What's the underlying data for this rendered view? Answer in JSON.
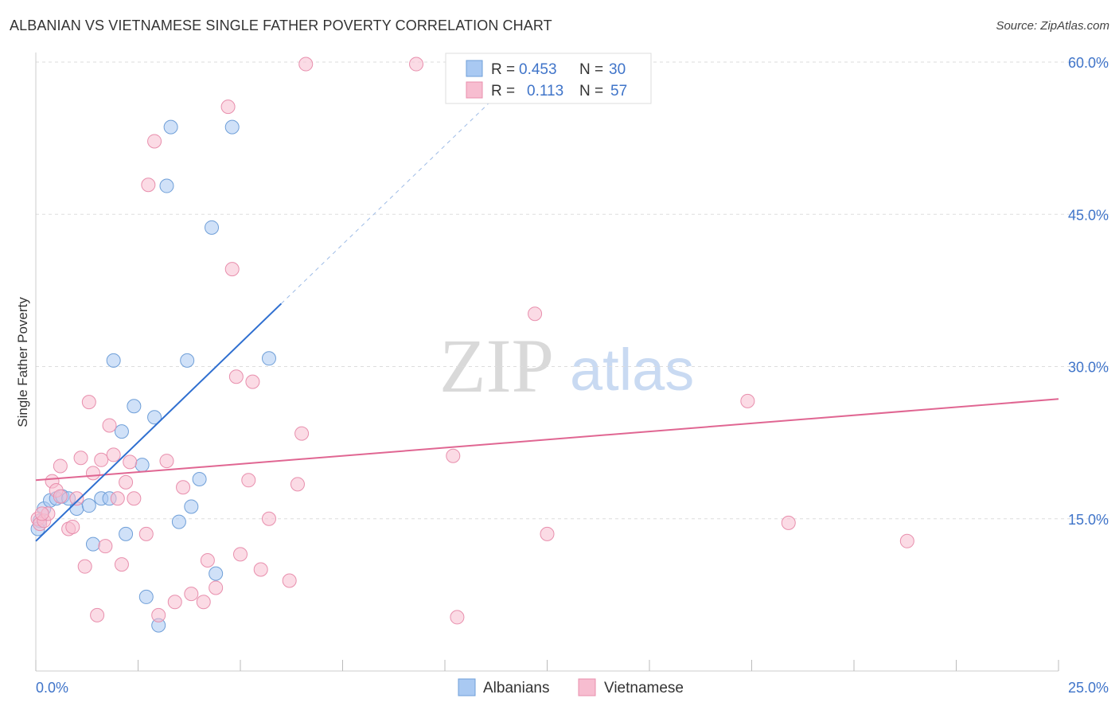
{
  "header": {
    "title": "ALBANIAN VS VIETNAMESE SINGLE FATHER POVERTY CORRELATION CHART",
    "source": "Source: ZipAtlas.com"
  },
  "watermark": {
    "zip": "ZIP",
    "atlas": "atlas"
  },
  "colors": {
    "albanians_fill": "#a9c9f2",
    "albanians_stroke": "#6f9fd8",
    "albanians_line": "#2f6fd0",
    "vietnamese_fill": "#f7bdd0",
    "vietnamese_stroke": "#e88fad",
    "vietnamese_line": "#e06692",
    "tick_text": "#3f74c9",
    "grid": "#dddddd"
  },
  "stats": {
    "albanians": {
      "r_label": "R =",
      "r": "0.453",
      "n_label": "N =",
      "n": "30"
    },
    "vietnamese": {
      "r_label": "R =",
      "r": "0.113",
      "n_label": "N =",
      "n": "57"
    }
  },
  "chart_data": {
    "type": "scatter",
    "title": "ALBANIAN VS VIETNAMESE SINGLE FATHER POVERTY CORRELATION CHART",
    "xlabel": "",
    "ylabel": "Single Father Poverty",
    "xlim": [
      0,
      25
    ],
    "ylim": [
      0,
      60
    ],
    "x_tick_labels": [
      "0.0%",
      "25.0%"
    ],
    "y_ticks": [
      15,
      30,
      45,
      60
    ],
    "y_tick_labels": [
      "15.0%",
      "30.0%",
      "45.0%",
      "60.0%"
    ],
    "legend": [
      "Albanians",
      "Vietnamese"
    ],
    "series": [
      {
        "name": "Albanians",
        "points": [
          [
            0.1,
            14.8
          ],
          [
            0.2,
            16.0
          ],
          [
            0.35,
            16.8
          ],
          [
            0.5,
            17.0
          ],
          [
            0.65,
            17.2
          ],
          [
            0.8,
            17.0
          ],
          [
            1.0,
            16.0
          ],
          [
            1.3,
            16.3
          ],
          [
            1.4,
            12.5
          ],
          [
            1.6,
            17.0
          ],
          [
            1.8,
            17.0
          ],
          [
            1.9,
            30.6
          ],
          [
            2.1,
            23.6
          ],
          [
            2.2,
            13.5
          ],
          [
            2.4,
            26.1
          ],
          [
            2.6,
            20.3
          ],
          [
            2.7,
            7.3
          ],
          [
            2.9,
            25.0
          ],
          [
            3.0,
            4.5
          ],
          [
            3.2,
            47.8
          ],
          [
            3.3,
            53.6
          ],
          [
            3.5,
            14.7
          ],
          [
            3.7,
            30.6
          ],
          [
            3.8,
            16.2
          ],
          [
            4.0,
            18.9
          ],
          [
            4.3,
            43.7
          ],
          [
            4.4,
            9.6
          ],
          [
            4.8,
            53.6
          ],
          [
            5.7,
            30.8
          ],
          [
            0.05,
            14.0
          ]
        ],
        "trend": {
          "x": [
            0.0,
            6.0
          ],
          "y": [
            12.8,
            36.2
          ]
        },
        "trend_dashed": {
          "x": [
            6.0,
            11.6
          ],
          "y": [
            36.2,
            58.0
          ]
        }
      },
      {
        "name": "Vietnamese",
        "points": [
          [
            0.05,
            15.0
          ],
          [
            0.1,
            14.5
          ],
          [
            0.2,
            14.8
          ],
          [
            0.3,
            15.5
          ],
          [
            0.4,
            18.7
          ],
          [
            0.5,
            17.8
          ],
          [
            0.6,
            20.2
          ],
          [
            0.8,
            14.0
          ],
          [
            0.9,
            14.2
          ],
          [
            1.0,
            17.0
          ],
          [
            1.1,
            21.0
          ],
          [
            1.2,
            10.3
          ],
          [
            1.3,
            26.5
          ],
          [
            1.4,
            19.5
          ],
          [
            1.5,
            5.5
          ],
          [
            1.6,
            20.8
          ],
          [
            1.7,
            12.3
          ],
          [
            1.8,
            24.2
          ],
          [
            1.9,
            21.3
          ],
          [
            2.0,
            17.0
          ],
          [
            2.1,
            10.5
          ],
          [
            2.2,
            18.6
          ],
          [
            2.3,
            20.6
          ],
          [
            2.4,
            17.0
          ],
          [
            2.7,
            13.5
          ],
          [
            2.75,
            47.9
          ],
          [
            2.9,
            52.2
          ],
          [
            3.0,
            5.5
          ],
          [
            3.2,
            20.7
          ],
          [
            3.4,
            6.8
          ],
          [
            3.6,
            18.1
          ],
          [
            3.8,
            7.6
          ],
          [
            4.1,
            6.8
          ],
          [
            4.2,
            10.9
          ],
          [
            4.4,
            8.2
          ],
          [
            4.7,
            55.6
          ],
          [
            4.8,
            39.6
          ],
          [
            4.9,
            29.0
          ],
          [
            5.0,
            11.5
          ],
          [
            5.2,
            18.8
          ],
          [
            5.3,
            28.5
          ],
          [
            5.5,
            10.0
          ],
          [
            5.7,
            15.0
          ],
          [
            6.2,
            8.9
          ],
          [
            6.4,
            18.4
          ],
          [
            6.5,
            23.4
          ],
          [
            6.6,
            59.8
          ],
          [
            9.3,
            59.8
          ],
          [
            10.2,
            21.2
          ],
          [
            10.3,
            5.3
          ],
          [
            12.2,
            35.2
          ],
          [
            12.5,
            13.5
          ],
          [
            17.4,
            26.6
          ],
          [
            18.4,
            14.6
          ],
          [
            21.3,
            12.8
          ],
          [
            0.15,
            15.5
          ],
          [
            0.6,
            17.2
          ]
        ],
        "trend": {
          "x": [
            0.0,
            25.0
          ],
          "y": [
            18.8,
            26.8
          ]
        }
      }
    ]
  }
}
